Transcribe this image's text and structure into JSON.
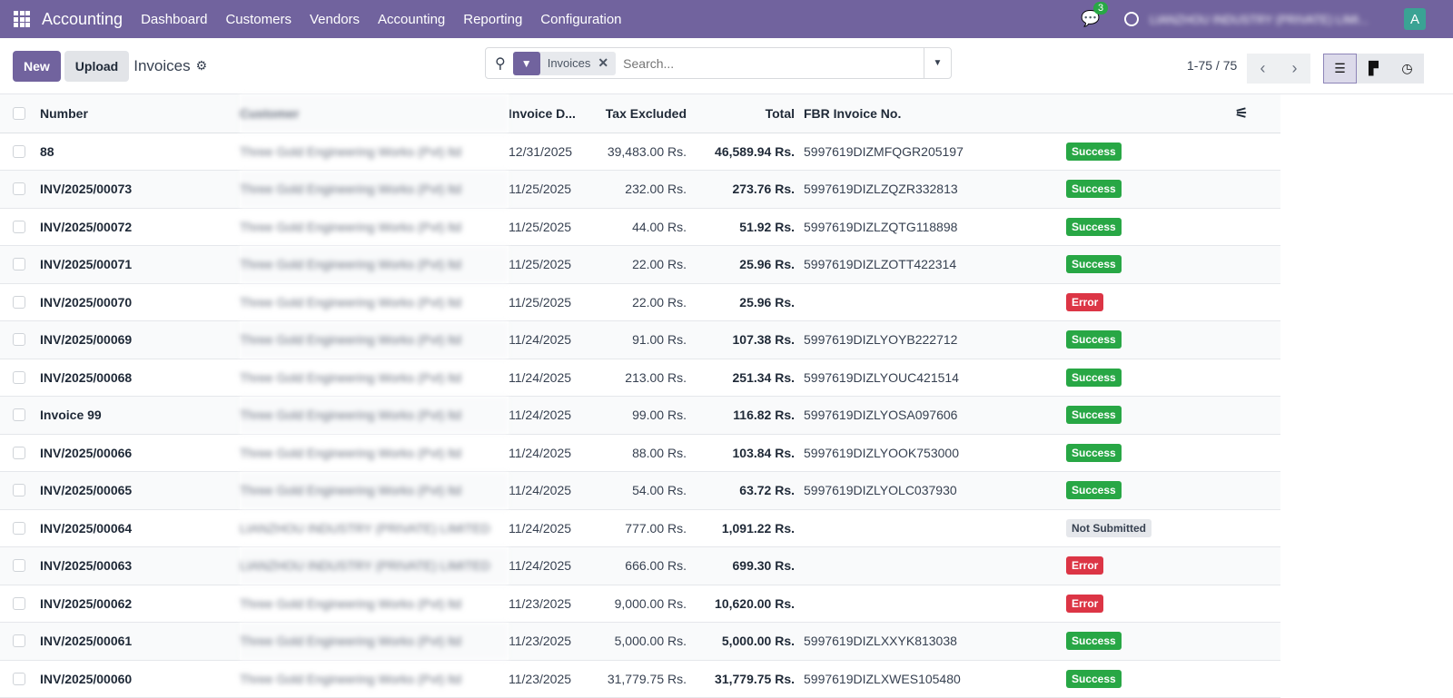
{
  "nav": {
    "app_name": "Accounting",
    "menu": [
      "Dashboard",
      "Customers",
      "Vendors",
      "Accounting",
      "Reporting",
      "Configuration"
    ],
    "messages_count": "3",
    "company": "LIANZHOU INDUSTRY (PRIVATE) LIMI...",
    "avatar_letter": "A",
    "color": "#71639e"
  },
  "control": {
    "new_label": "New",
    "upload_label": "Upload",
    "title": "Invoices",
    "facet": "Invoices",
    "search_placeholder": "Search...",
    "pager": "1-75 / 75"
  },
  "table": {
    "headers": {
      "number": "Number",
      "customer": "Customer",
      "date": "Invoice D...",
      "tax": "Tax Excluded",
      "total": "Total",
      "fbr": "FBR Invoice No."
    },
    "rows": [
      {
        "number": "88",
        "customer": "Three Gold Engineering Works (Pvt) ltd",
        "date": "12/31/2025",
        "tax": "39,483.00 Rs.",
        "total": "46,589.94 Rs.",
        "fbr": "5997619DIZMFQGR205197",
        "status": "Success"
      },
      {
        "number": "INV/2025/00073",
        "customer": "Three Gold Engineering Works (Pvt) ltd",
        "date": "11/25/2025",
        "tax": "232.00 Rs.",
        "total": "273.76 Rs.",
        "fbr": "5997619DIZLZQZR332813",
        "status": "Success"
      },
      {
        "number": "INV/2025/00072",
        "customer": "Three Gold Engineering Works (Pvt) ltd",
        "date": "11/25/2025",
        "tax": "44.00 Rs.",
        "total": "51.92 Rs.",
        "fbr": "5997619DIZLZQTG118898",
        "status": "Success"
      },
      {
        "number": "INV/2025/00071",
        "customer": "Three Gold Engineering Works (Pvt) ltd",
        "date": "11/25/2025",
        "tax": "22.00 Rs.",
        "total": "25.96 Rs.",
        "fbr": "5997619DIZLZOTT422314",
        "status": "Success"
      },
      {
        "number": "INV/2025/00070",
        "customer": "Three Gold Engineering Works (Pvt) ltd",
        "date": "11/25/2025",
        "tax": "22.00 Rs.",
        "total": "25.96 Rs.",
        "fbr": "",
        "status": "Error"
      },
      {
        "number": "INV/2025/00069",
        "customer": "Three Gold Engineering Works (Pvt) ltd",
        "date": "11/24/2025",
        "tax": "91.00 Rs.",
        "total": "107.38 Rs.",
        "fbr": "5997619DIZLYOYB222712",
        "status": "Success"
      },
      {
        "number": "INV/2025/00068",
        "customer": "Three Gold Engineering Works (Pvt) ltd",
        "date": "11/24/2025",
        "tax": "213.00 Rs.",
        "total": "251.34 Rs.",
        "fbr": "5997619DIZLYOUC421514",
        "status": "Success"
      },
      {
        "number": "Invoice 99",
        "customer": "Three Gold Engineering Works (Pvt) ltd",
        "date": "11/24/2025",
        "tax": "99.00 Rs.",
        "total": "116.82 Rs.",
        "fbr": "5997619DIZLYOSA097606",
        "status": "Success"
      },
      {
        "number": "INV/2025/00066",
        "customer": "Three Gold Engineering Works (Pvt) ltd",
        "date": "11/24/2025",
        "tax": "88.00 Rs.",
        "total": "103.84 Rs.",
        "fbr": "5997619DIZLYOOK753000",
        "status": "Success"
      },
      {
        "number": "INV/2025/00065",
        "customer": "Three Gold Engineering Works (Pvt) ltd",
        "date": "11/24/2025",
        "tax": "54.00 Rs.",
        "total": "63.72 Rs.",
        "fbr": "5997619DIZLYOLC037930",
        "status": "Success"
      },
      {
        "number": "INV/2025/00064",
        "customer": "LIANZHOU INDUSTRY (PRIVATE) LIMITED",
        "date": "11/24/2025",
        "tax": "777.00 Rs.",
        "total": "1,091.22 Rs.",
        "fbr": "",
        "status": "Not Submitted"
      },
      {
        "number": "INV/2025/00063",
        "customer": "LIANZHOU INDUSTRY (PRIVATE) LIMITED",
        "date": "11/24/2025",
        "tax": "666.00 Rs.",
        "total": "699.30 Rs.",
        "fbr": "",
        "status": "Error"
      },
      {
        "number": "INV/2025/00062",
        "customer": "Three Gold Engineering Works (Pvt) ltd",
        "date": "11/23/2025",
        "tax": "9,000.00 Rs.",
        "total": "10,620.00 Rs.",
        "fbr": "",
        "status": "Error"
      },
      {
        "number": "INV/2025/00061",
        "customer": "Three Gold Engineering Works (Pvt) ltd",
        "date": "11/23/2025",
        "tax": "5,000.00 Rs.",
        "total": "5,000.00 Rs.",
        "fbr": "5997619DIZLXXYK813038",
        "status": "Success"
      },
      {
        "number": "INV/2025/00060",
        "customer": "Three Gold Engineering Works (Pvt) ltd",
        "date": "11/23/2025",
        "tax": "31,779.75 Rs.",
        "total": "31,779.75 Rs.",
        "fbr": "5997619DIZLXWES105480",
        "status": "Success"
      }
    ]
  },
  "status_colors": {
    "Success": "#28a745",
    "Error": "#dc3545",
    "Not Submitted": "#e5e7eb"
  }
}
